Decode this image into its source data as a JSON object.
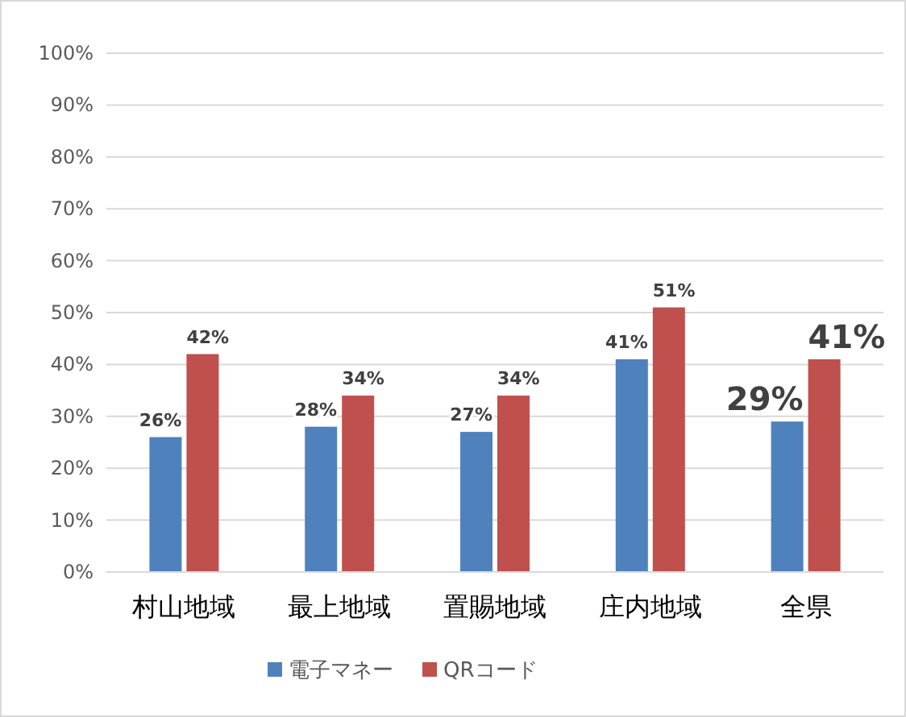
{
  "chart_data": {
    "type": "bar",
    "categories": [
      "村山地域",
      "最上地域",
      "置賜地域",
      "庄内地域",
      "全県"
    ],
    "series": [
      {
        "name": "電子マネー",
        "color": "#4f81bd",
        "values": [
          26,
          28,
          27,
          41,
          29
        ],
        "value_labels": [
          "26%",
          "28%",
          "27%",
          "41%",
          "29%"
        ]
      },
      {
        "name": "QRコード",
        "color": "#c0504d",
        "values": [
          42,
          34,
          34,
          51,
          41
        ],
        "value_labels": [
          "42%",
          "34%",
          "34%",
          "51%",
          "41%"
        ]
      }
    ],
    "ylim": [
      0,
      100
    ],
    "yticks": [
      {
        "value": 0,
        "label": "0%"
      },
      {
        "value": 10,
        "label": "10%"
      },
      {
        "value": 20,
        "label": "20%"
      },
      {
        "value": 30,
        "label": "30%"
      },
      {
        "value": 40,
        "label": "40%"
      },
      {
        "value": 50,
        "label": "50%"
      },
      {
        "value": 60,
        "label": "60%"
      },
      {
        "value": 70,
        "label": "70%"
      },
      {
        "value": 80,
        "label": "80%"
      },
      {
        "value": 90,
        "label": "90%"
      },
      {
        "value": 100,
        "label": "100%"
      }
    ],
    "grid": "y",
    "legend": "bottom"
  }
}
